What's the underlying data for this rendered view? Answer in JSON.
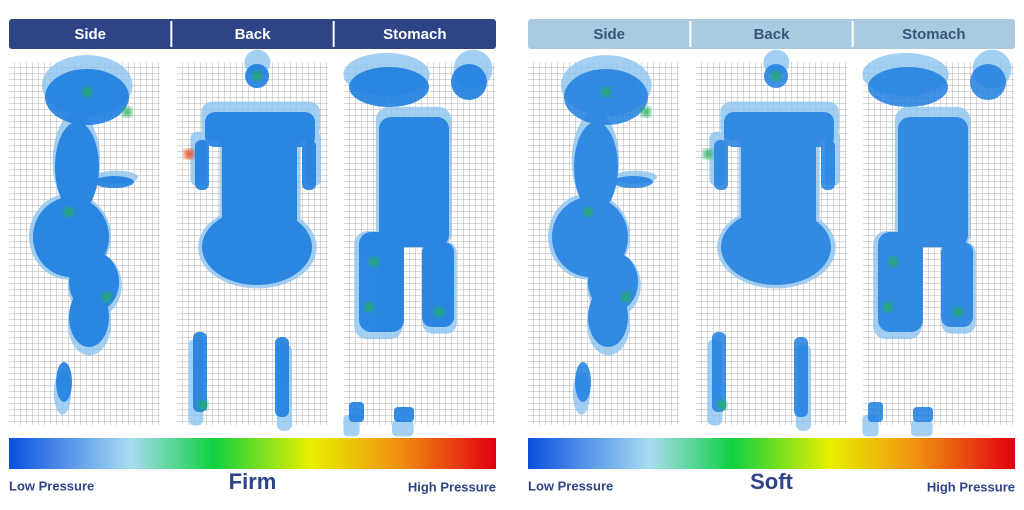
{
  "panels": [
    {
      "label": "Firm",
      "tabs": [
        "Side",
        "Back",
        "Stomach"
      ],
      "low": "Low Pressure",
      "high": "High Pressure"
    },
    {
      "label": "Soft",
      "tabs": [
        "Side",
        "Back",
        "Stomach"
      ],
      "low": "Low Pressure",
      "high": "High Pressure"
    }
  ]
}
